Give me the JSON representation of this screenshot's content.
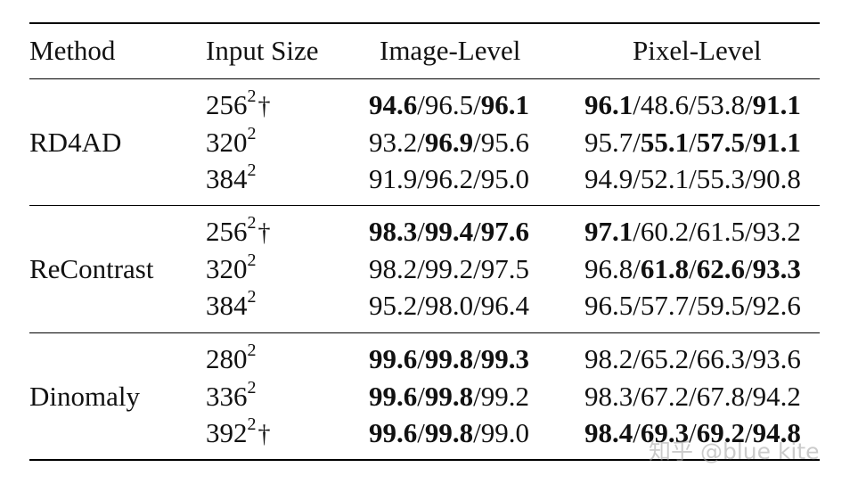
{
  "headers": {
    "method": "Method",
    "input_size": "Input Size",
    "image_level": "Image-Level",
    "pixel_level": "Pixel-Level"
  },
  "groups": [
    {
      "method": "RD4AD",
      "rows": [
        {
          "size": "256",
          "exp": "2",
          "dagger": "†",
          "image": [
            {
              "v": "94.6",
              "b": true
            },
            {
              "v": "96.5",
              "b": false
            },
            {
              "v": "96.1",
              "b": true
            }
          ],
          "pixel": [
            {
              "v": "96.1",
              "b": true
            },
            {
              "v": "48.6",
              "b": false
            },
            {
              "v": "53.8",
              "b": false
            },
            {
              "v": "91.1",
              "b": true
            }
          ]
        },
        {
          "size": "320",
          "exp": "2",
          "dagger": "",
          "image": [
            {
              "v": "93.2",
              "b": false
            },
            {
              "v": "96.9",
              "b": true
            },
            {
              "v": "95.6",
              "b": false
            }
          ],
          "pixel": [
            {
              "v": "95.7",
              "b": false
            },
            {
              "v": "55.1",
              "b": true
            },
            {
              "v": "57.5",
              "b": true
            },
            {
              "v": "91.1",
              "b": true
            }
          ]
        },
        {
          "size": "384",
          "exp": "2",
          "dagger": "",
          "image": [
            {
              "v": "91.9",
              "b": false
            },
            {
              "v": "96.2",
              "b": false
            },
            {
              "v": "95.0",
              "b": false
            }
          ],
          "pixel": [
            {
              "v": "94.9",
              "b": false
            },
            {
              "v": "52.1",
              "b": false
            },
            {
              "v": "55.3",
              "b": false
            },
            {
              "v": "90.8",
              "b": false
            }
          ]
        }
      ]
    },
    {
      "method": "ReContrast",
      "rows": [
        {
          "size": "256",
          "exp": "2",
          "dagger": "†",
          "image": [
            {
              "v": "98.3",
              "b": true
            },
            {
              "v": "99.4",
              "b": true
            },
            {
              "v": "97.6",
              "b": true
            }
          ],
          "pixel": [
            {
              "v": "97.1",
              "b": true
            },
            {
              "v": "60.2",
              "b": false
            },
            {
              "v": "61.5",
              "b": false
            },
            {
              "v": "93.2",
              "b": false
            }
          ]
        },
        {
          "size": "320",
          "exp": "2",
          "dagger": "",
          "image": [
            {
              "v": "98.2",
              "b": false
            },
            {
              "v": "99.2",
              "b": false
            },
            {
              "v": "97.5",
              "b": false
            }
          ],
          "pixel": [
            {
              "v": "96.8",
              "b": false
            },
            {
              "v": "61.8",
              "b": true
            },
            {
              "v": "62.6",
              "b": true
            },
            {
              "v": "93.3",
              "b": true
            }
          ]
        },
        {
          "size": "384",
          "exp": "2",
          "dagger": "",
          "image": [
            {
              "v": "95.2",
              "b": false
            },
            {
              "v": "98.0",
              "b": false
            },
            {
              "v": "96.4",
              "b": false
            }
          ],
          "pixel": [
            {
              "v": "96.5",
              "b": false
            },
            {
              "v": "57.7",
              "b": false
            },
            {
              "v": "59.5",
              "b": false
            },
            {
              "v": "92.6",
              "b": false
            }
          ]
        }
      ]
    },
    {
      "method": "Dinomaly",
      "rows": [
        {
          "size": "280",
          "exp": "2",
          "dagger": "",
          "image": [
            {
              "v": "99.6",
              "b": true
            },
            {
              "v": "99.8",
              "b": true
            },
            {
              "v": "99.3",
              "b": true
            }
          ],
          "pixel": [
            {
              "v": "98.2",
              "b": false
            },
            {
              "v": "65.2",
              "b": false
            },
            {
              "v": "66.3",
              "b": false
            },
            {
              "v": "93.6",
              "b": false
            }
          ]
        },
        {
          "size": "336",
          "exp": "2",
          "dagger": "",
          "image": [
            {
              "v": "99.6",
              "b": true
            },
            {
              "v": "99.8",
              "b": true
            },
            {
              "v": "99.2",
              "b": false
            }
          ],
          "pixel": [
            {
              "v": "98.3",
              "b": false
            },
            {
              "v": "67.2",
              "b": false
            },
            {
              "v": "67.8",
              "b": false
            },
            {
              "v": "94.2",
              "b": false
            }
          ]
        },
        {
          "size": "392",
          "exp": "2",
          "dagger": "†",
          "image": [
            {
              "v": "99.6",
              "b": true
            },
            {
              "v": "99.8",
              "b": true
            },
            {
              "v": "99.0",
              "b": false
            }
          ],
          "pixel": [
            {
              "v": "98.4",
              "b": true
            },
            {
              "v": "69.3",
              "b": true
            },
            {
              "v": "69.2",
              "b": true
            },
            {
              "v": "94.8",
              "b": true
            }
          ]
        }
      ]
    }
  ],
  "watermark": "知乎 @blue kite"
}
